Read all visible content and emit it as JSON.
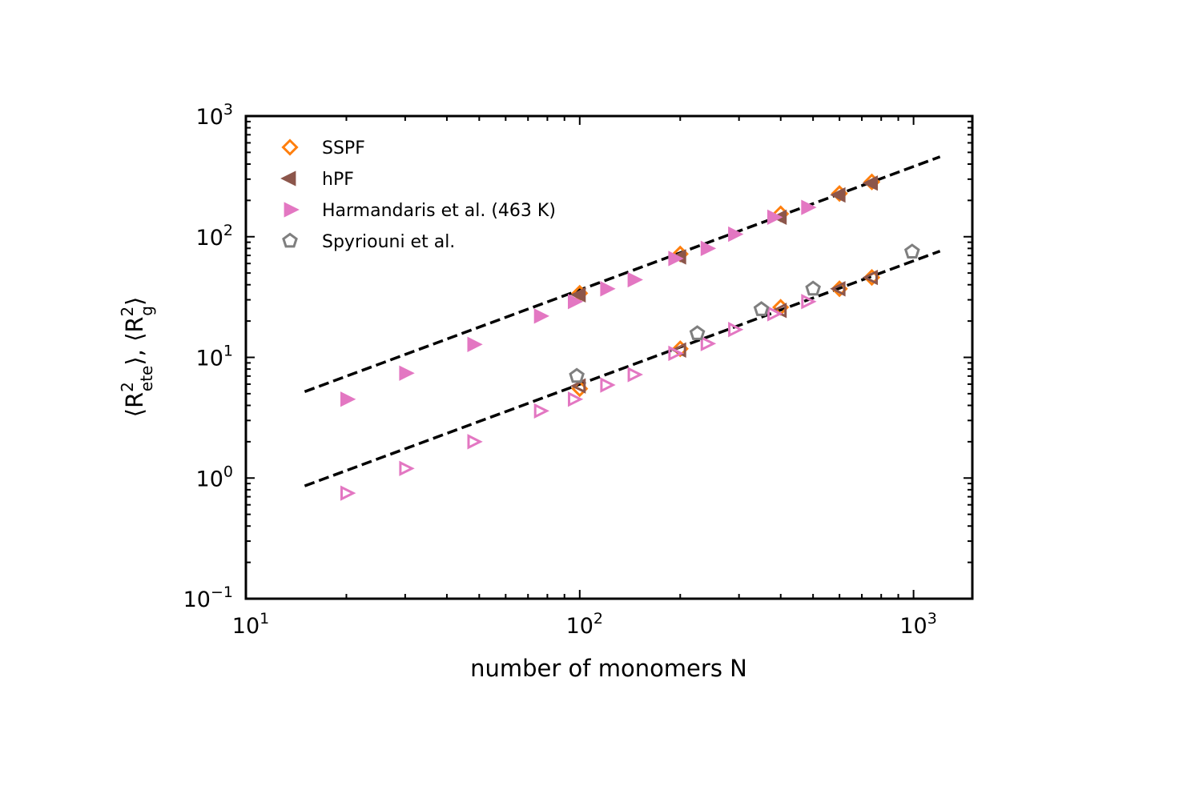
{
  "chart_data": {
    "type": "scatter",
    "title": "",
    "xlabel": "number of monomers N",
    "ylabel": {
      "parts": [
        "⟨R",
        "2",
        "ete",
        "⟩, ⟨R",
        "2",
        "g",
        "⟩"
      ]
    },
    "xscale": "log",
    "yscale": "log",
    "xlim": [
      10,
      1500
    ],
    "ylim": [
      0.1,
      1000
    ],
    "x_ticks": [
      {
        "base": "10",
        "exp": "1",
        "value": 10
      },
      {
        "base": "10",
        "exp": "2",
        "value": 100
      },
      {
        "base": "10",
        "exp": "3",
        "value": 1000
      }
    ],
    "y_ticks": [
      {
        "base": "10",
        "exp": "−1",
        "value": 0.1
      },
      {
        "base": "10",
        "exp": "0",
        "value": 1
      },
      {
        "base": "10",
        "exp": "1",
        "value": 10
      },
      {
        "base": "10",
        "exp": "2",
        "value": 100
      },
      {
        "base": "10",
        "exp": "3",
        "value": 1000
      }
    ],
    "grid": false,
    "legend_position": "top-left",
    "legend": [
      {
        "label": "SSPF",
        "marker": "diamond",
        "color": "#ff7f0e"
      },
      {
        "label": "hPF",
        "marker": "triangle-left",
        "color": "#8c564b"
      },
      {
        "label": "Harmandaris et al. (463 K)",
        "marker": "triangle-right",
        "color": "#e377c2"
      },
      {
        "label": "Spyriouni et al.",
        "marker": "pentagon",
        "color": "#7f7f7f"
      }
    ],
    "series": [
      {
        "name": "SSPF",
        "quantity": "ete",
        "marker": "diamond",
        "color": "#ff7f0e",
        "filled": false,
        "x": [
          100,
          200,
          400,
          600,
          750
        ],
        "y": [
          34,
          72,
          155,
          228,
          285
        ]
      },
      {
        "name": "SSPF",
        "quantity": "g",
        "marker": "diamond",
        "color": "#ff7f0e",
        "filled": false,
        "x": [
          100,
          200,
          400,
          600,
          750
        ],
        "y": [
          5.5,
          11.8,
          26,
          37,
          46
        ]
      },
      {
        "name": "hPF",
        "quantity": "ete",
        "marker": "triangle-left",
        "color": "#8c564b",
        "filled": true,
        "x": [
          100,
          200,
          400,
          600,
          750
        ],
        "y": [
          33,
          68,
          145,
          222,
          278
        ]
      },
      {
        "name": "hPF",
        "quantity": "g",
        "marker": "triangle-left",
        "color": "#8c564b",
        "filled": false,
        "x": [
          100,
          200,
          400,
          600,
          750
        ],
        "y": [
          5.8,
          11.5,
          24.5,
          37,
          46
        ]
      },
      {
        "name": "Harmandaris et al. (463 K)",
        "quantity": "ete",
        "marker": "triangle-right",
        "color": "#e377c2",
        "filled": true,
        "x": [
          20,
          30,
          48,
          76,
          96,
          120,
          145,
          192,
          240,
          290,
          380,
          480
        ],
        "y": [
          4.5,
          7.4,
          12.8,
          22,
          29,
          37,
          44,
          66,
          80,
          105,
          145,
          175
        ]
      },
      {
        "name": "Harmandaris et al. (463 K)",
        "quantity": "g",
        "marker": "triangle-right",
        "color": "#e377c2",
        "filled": false,
        "x": [
          20,
          30,
          48,
          76,
          96,
          120,
          145,
          192,
          240,
          290,
          380,
          480
        ],
        "y": [
          0.75,
          1.2,
          2.0,
          3.6,
          4.5,
          5.9,
          7.2,
          10.8,
          13,
          17,
          23,
          29
        ]
      },
      {
        "name": "Spyriouni et al.",
        "quantity": "g",
        "marker": "pentagon",
        "color": "#7f7f7f",
        "filled": false,
        "x": [
          98,
          225,
          350,
          500,
          990
        ],
        "y": [
          7.0,
          15.8,
          25,
          37,
          75
        ]
      }
    ],
    "fit_lines": [
      {
        "style": "dashed",
        "color": "#000000",
        "x": [
          15,
          1200
        ],
        "y": [
          5.2,
          460
        ]
      },
      {
        "style": "dashed",
        "color": "#000000",
        "x": [
          15,
          1200
        ],
        "y": [
          0.86,
          76
        ]
      }
    ]
  }
}
